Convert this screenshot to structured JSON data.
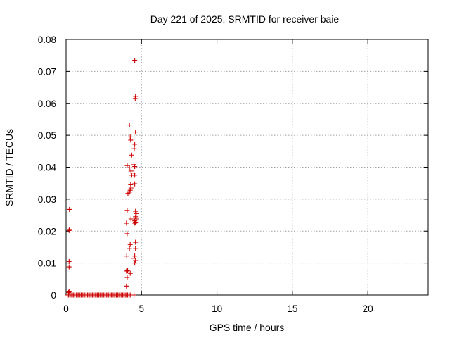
{
  "chart_data": {
    "type": "scatter",
    "title": "Day 221 of 2025, SRMTID for receiver baie",
    "xlabel": "GPS time / hours",
    "ylabel": "SRMTID / TECUs",
    "xlim": [
      0,
      24
    ],
    "ylim": [
      0,
      0.08
    ],
    "xticks": [
      0,
      5,
      10,
      15,
      20
    ],
    "yticks": [
      0,
      0.01,
      0.02,
      0.03,
      0.04,
      0.05,
      0.06,
      0.07,
      0.08
    ],
    "xtick_labels": [
      "0",
      "5",
      "10",
      "15",
      "20"
    ],
    "ytick_labels": [
      "0",
      "0.01",
      "0.02",
      "0.03",
      "0.04",
      "0.05",
      "0.06",
      "0.07",
      "0.08"
    ],
    "grid": true,
    "marker": "plus",
    "color": "#cc0000",
    "series": [
      {
        "name": "SRMTID",
        "points": [
          [
            0.08,
            0.0
          ],
          [
            0.17,
            0.0
          ],
          [
            0.25,
            0.0
          ],
          [
            0.33,
            0.0
          ],
          [
            0.42,
            0.0
          ],
          [
            0.5,
            0.0
          ],
          [
            0.58,
            0.0
          ],
          [
            0.67,
            0.0
          ],
          [
            0.75,
            0.0
          ],
          [
            0.83,
            0.0
          ],
          [
            0.92,
            0.0
          ],
          [
            1.0,
            0.0
          ],
          [
            1.08,
            0.0
          ],
          [
            1.17,
            0.0
          ],
          [
            1.25,
            0.0
          ],
          [
            1.33,
            0.0
          ],
          [
            1.42,
            0.0
          ],
          [
            1.5,
            0.0
          ],
          [
            1.58,
            0.0
          ],
          [
            1.67,
            0.0
          ],
          [
            1.75,
            0.0
          ],
          [
            1.83,
            0.0
          ],
          [
            1.92,
            0.0
          ],
          [
            2.0,
            0.0
          ],
          [
            2.08,
            0.0
          ],
          [
            2.17,
            0.0
          ],
          [
            2.25,
            0.0
          ],
          [
            2.33,
            0.0
          ],
          [
            2.42,
            0.0
          ],
          [
            2.5,
            0.0
          ],
          [
            2.58,
            0.0
          ],
          [
            2.67,
            0.0
          ],
          [
            2.75,
            0.0
          ],
          [
            2.83,
            0.0
          ],
          [
            2.92,
            0.0
          ],
          [
            3.0,
            0.0
          ],
          [
            3.08,
            0.0
          ],
          [
            3.17,
            0.0
          ],
          [
            3.25,
            0.0
          ],
          [
            3.33,
            0.0
          ],
          [
            3.42,
            0.0
          ],
          [
            3.5,
            0.0
          ],
          [
            3.58,
            0.0
          ],
          [
            3.67,
            0.0
          ],
          [
            3.75,
            0.0
          ],
          [
            3.83,
            0.0
          ],
          [
            3.92,
            0.0
          ],
          [
            4.0,
            0.0
          ],
          [
            4.08,
            0.0
          ],
          [
            4.17,
            0.0
          ],
          [
            4.25,
            0.0
          ],
          [
            4.5,
            0.0
          ],
          [
            0.17,
            0.0008
          ],
          [
            0.2,
            0.0012
          ],
          [
            0.2,
            0.0088
          ],
          [
            0.2,
            0.0105
          ],
          [
            0.2,
            0.0202
          ],
          [
            0.22,
            0.0205
          ],
          [
            0.22,
            0.0268
          ],
          [
            4.0,
            0.0028
          ],
          [
            4.05,
            0.0055
          ],
          [
            4.0,
            0.0075
          ],
          [
            4.08,
            0.0077
          ],
          [
            4.25,
            0.0068
          ],
          [
            4.02,
            0.0122
          ],
          [
            4.05,
            0.0192
          ],
          [
            4.0,
            0.0225
          ],
          [
            4.05,
            0.0265
          ],
          [
            4.2,
            0.0145
          ],
          [
            4.25,
            0.0158
          ],
          [
            4.1,
            0.0318
          ],
          [
            4.2,
            0.0322
          ],
          [
            4.25,
            0.0328
          ],
          [
            4.3,
            0.0335
          ],
          [
            4.28,
            0.0345
          ],
          [
            4.05,
            0.0405
          ],
          [
            4.2,
            0.0398
          ],
          [
            4.3,
            0.0388
          ],
          [
            4.35,
            0.0375
          ],
          [
            4.2,
            0.0532
          ],
          [
            4.25,
            0.0495
          ],
          [
            4.28,
            0.0485
          ],
          [
            4.35,
            0.0438
          ],
          [
            4.55,
            0.0735
          ],
          [
            4.6,
            0.0622
          ],
          [
            4.58,
            0.0615
          ],
          [
            4.6,
            0.051
          ],
          [
            4.55,
            0.0472
          ],
          [
            4.52,
            0.0458
          ],
          [
            4.5,
            0.0408
          ],
          [
            4.55,
            0.0402
          ],
          [
            4.5,
            0.0382
          ],
          [
            4.55,
            0.0375
          ],
          [
            4.55,
            0.0348
          ],
          [
            4.6,
            0.0262
          ],
          [
            4.65,
            0.0255
          ],
          [
            4.6,
            0.0245
          ],
          [
            4.65,
            0.0238
          ],
          [
            4.55,
            0.0232
          ],
          [
            4.6,
            0.0228
          ],
          [
            4.55,
            0.0225
          ],
          [
            4.6,
            0.0165
          ],
          [
            4.6,
            0.0145
          ],
          [
            4.55,
            0.0122
          ],
          [
            4.5,
            0.0115
          ],
          [
            4.6,
            0.0108
          ],
          [
            4.55,
            0.01
          ],
          [
            4.3,
            0.0238
          ]
        ]
      }
    ]
  }
}
